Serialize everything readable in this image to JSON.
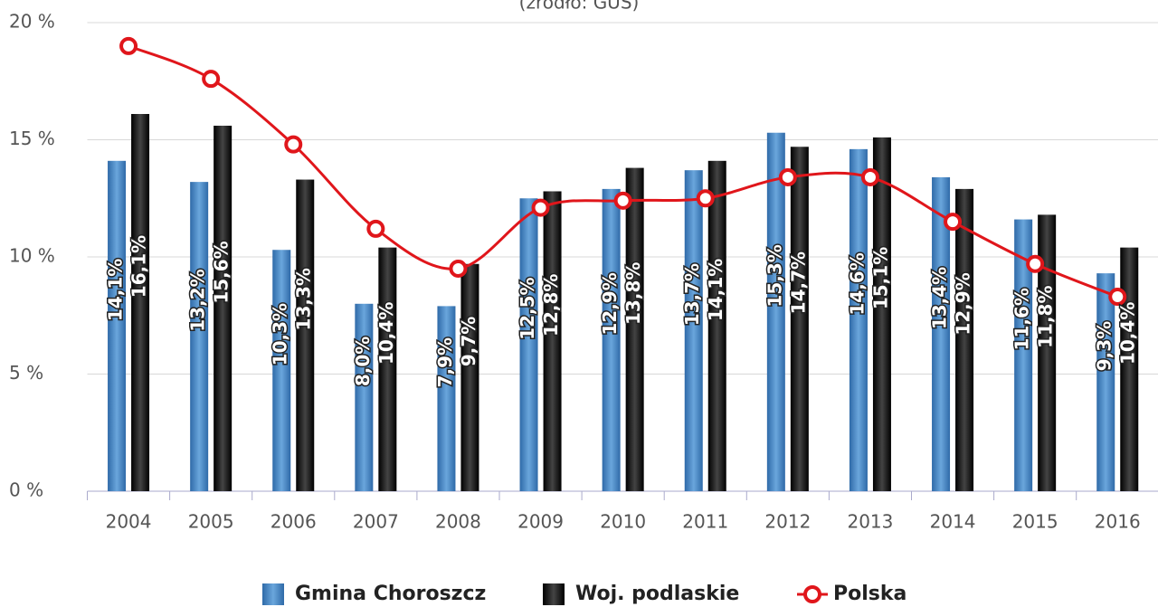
{
  "chart_data": {
    "type": "bar",
    "subtitle": "(źródło: GUS)",
    "categories": [
      "2004",
      "2005",
      "2006",
      "2007",
      "2008",
      "2009",
      "2010",
      "2011",
      "2012",
      "2013",
      "2014",
      "2015",
      "2016"
    ],
    "series": [
      {
        "name": "Gmina Choroszcz",
        "type": "bar",
        "color": "#3f82c4",
        "values": [
          14.1,
          13.2,
          10.3,
          8.0,
          7.9,
          12.5,
          12.9,
          13.7,
          15.3,
          14.6,
          13.4,
          11.6,
          9.3
        ],
        "value_labels": [
          "14,1%",
          "13,2%",
          "10,3%",
          "8,0%",
          "7,9%",
          "12,5%",
          "12,9%",
          "13,7%",
          "15,3%",
          "14,6%",
          "13,4%",
          "11,6%",
          "9,3%"
        ]
      },
      {
        "name": "Woj. podlaskie",
        "type": "bar",
        "color": "#1b1b1b",
        "values": [
          16.1,
          15.6,
          13.3,
          10.4,
          9.7,
          12.8,
          13.8,
          14.1,
          14.7,
          15.1,
          12.9,
          11.8,
          10.4
        ],
        "value_labels": [
          "16,1%",
          "15,6%",
          "13,3%",
          "10,4%",
          "9,7%",
          "12,8%",
          "13,8%",
          "14,1%",
          "14,7%",
          "15,1%",
          "12,9%",
          "11,8%",
          "10,4%"
        ]
      },
      {
        "name": "Polska",
        "type": "line",
        "color": "#e0161b",
        "values": [
          19.0,
          17.6,
          14.8,
          11.2,
          9.5,
          12.1,
          12.4,
          12.5,
          13.4,
          13.4,
          11.5,
          9.7,
          8.3
        ]
      }
    ],
    "ylim": [
      0,
      20
    ],
    "yticks": [
      {
        "value": 0,
        "label": "0 %"
      },
      {
        "value": 5,
        "label": "5 %"
      },
      {
        "value": 10,
        "label": "10 %"
      },
      {
        "value": 15,
        "label": "15 %"
      },
      {
        "value": 20,
        "label": "20 %"
      }
    ],
    "grid": true
  }
}
